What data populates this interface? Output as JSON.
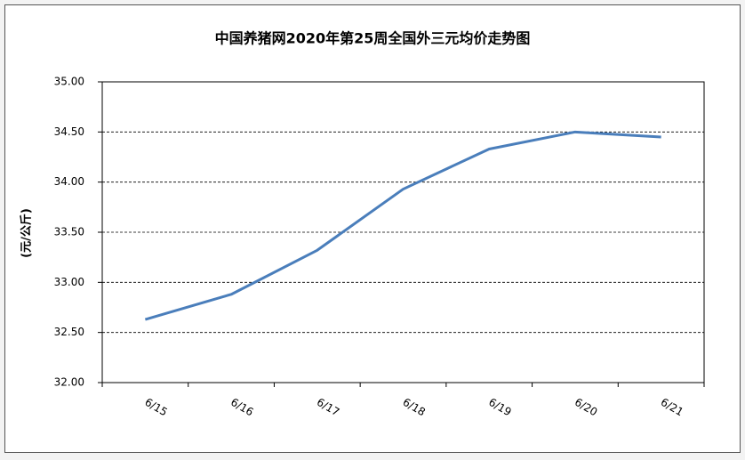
{
  "chart_data": {
    "type": "line",
    "title": "中国养猪网2020年第25周全国外三元均价走势图",
    "y_label": "(元/公斤)",
    "categories": [
      "6/15",
      "6/16",
      "6/17",
      "6/18",
      "6/19",
      "6/20",
      "6/21"
    ],
    "values": [
      32.63,
      32.88,
      33.32,
      33.93,
      34.33,
      34.5,
      34.45
    ],
    "color": "#4a7ebb",
    "ylim": [
      32,
      35
    ],
    "yticks": [
      {
        "value": 32,
        "label": "32.00"
      },
      {
        "value": 32.5,
        "label": "32.50"
      },
      {
        "value": 33,
        "label": "33.00"
      },
      {
        "value": 33.5,
        "label": "33.50"
      },
      {
        "value": 34,
        "label": "34.00"
      },
      {
        "value": 34.5,
        "label": "34.50"
      },
      {
        "value": 35,
        "label": "35.00"
      }
    ],
    "grid": true
  }
}
